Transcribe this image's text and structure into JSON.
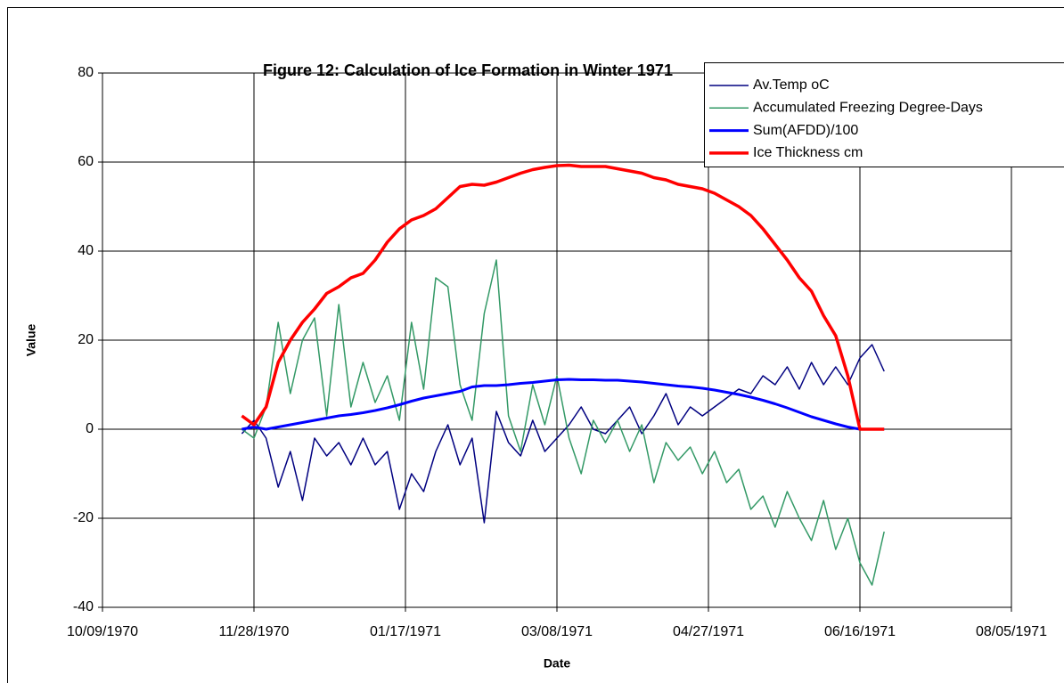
{
  "chart_data": {
    "type": "line",
    "title": "Figure  12: Calculation of Ice Formation in Winter  1971",
    "xlabel": "Date",
    "ylabel": "Value",
    "x": [
      "11/24/1970",
      "11/28/1970",
      "12/02/1970",
      "12/06/1970",
      "12/10/1970",
      "12/14/1970",
      "12/18/1970",
      "12/22/1970",
      "12/26/1970",
      "12/30/1970",
      "01/03/1971",
      "01/07/1971",
      "01/11/1971",
      "01/15/1971",
      "01/19/1971",
      "01/23/1971",
      "01/27/1971",
      "01/31/1971",
      "02/04/1971",
      "02/08/1971",
      "02/12/1971",
      "02/16/1971",
      "02/20/1971",
      "02/24/1971",
      "02/28/1971",
      "03/04/1971",
      "03/08/1971",
      "03/12/1971",
      "03/16/1971",
      "03/20/1971",
      "03/24/1971",
      "03/28/1971",
      "04/01/1971",
      "04/05/1971",
      "04/09/1971",
      "04/13/1971",
      "04/17/1971",
      "04/21/1971",
      "04/25/1971",
      "04/29/1971",
      "05/03/1971",
      "05/07/1971",
      "05/11/1971",
      "05/15/1971",
      "05/19/1971",
      "05/23/1971",
      "05/27/1971",
      "05/31/1971",
      "06/04/1971",
      "06/08/1971",
      "06/12/1971",
      "06/16/1971",
      "06/20/1971",
      "06/24/1971"
    ],
    "series": [
      {
        "name": "Av.Temp oC",
        "color": "#000080",
        "width": 1.5,
        "values": [
          -1,
          2,
          -2,
          -13,
          -5,
          -16,
          -2,
          -6,
          -3,
          -8,
          -2,
          -8,
          -5,
          -18,
          -10,
          -14,
          -5,
          1,
          -8,
          -2,
          -21,
          4,
          -3,
          -6,
          2,
          -5,
          -2,
          1,
          5,
          0,
          -1,
          2,
          5,
          -1,
          3,
          8,
          1,
          5,
          3,
          5,
          7,
          9,
          8,
          12,
          10,
          14,
          9,
          15,
          10,
          14,
          10,
          16,
          19,
          13
        ]
      },
      {
        "name": "Accumulated Freezing Degree-Days",
        "color": "#339966",
        "width": 1.5,
        "values": [
          0,
          -2,
          5,
          24,
          8,
          20,
          25,
          3,
          28,
          5,
          15,
          6,
          12,
          2,
          24,
          9,
          34,
          32,
          10,
          2,
          26,
          38,
          3,
          -5,
          10,
          1,
          12,
          -2,
          -10,
          2,
          -3,
          2,
          -5,
          1,
          -12,
          -3,
          -7,
          -4,
          -10,
          -5,
          -12,
          -9,
          -18,
          -15,
          -22,
          -14,
          -20,
          -25,
          -16,
          -27,
          -20,
          -30,
          -35,
          -23
        ]
      },
      {
        "name": "Sum(AFDD)/100",
        "color": "#0000ff",
        "width": 3,
        "values": [
          0,
          0.5,
          0,
          0.5,
          1,
          1.5,
          2,
          2.5,
          3,
          3.3,
          3.7,
          4.2,
          4.8,
          5.5,
          6.3,
          7,
          7.5,
          8,
          8.5,
          9.5,
          9.8,
          9.8,
          10,
          10.3,
          10.5,
          10.8,
          11.1,
          11.2,
          11.1,
          11.1,
          11,
          11,
          10.8,
          10.6,
          10.3,
          10,
          9.7,
          9.5,
          9.2,
          8.8,
          8.3,
          7.8,
          7.2,
          6.5,
          5.7,
          4.8,
          3.8,
          2.8,
          2,
          1.2,
          0.5,
          0,
          0,
          0
        ]
      },
      {
        "name": "Ice Thickness cm",
        "color": "#ff0000",
        "width": 3.5,
        "values": [
          3,
          1,
          5,
          15,
          20,
          24,
          27,
          30.5,
          32,
          34,
          35,
          38,
          42,
          45,
          47,
          48,
          49.5,
          52,
          54.5,
          55,
          54.8,
          55.5,
          56.5,
          57.5,
          58.3,
          58.8,
          59.2,
          59.3,
          59,
          59,
          59,
          58.5,
          58,
          57.5,
          56.5,
          56,
          55,
          54.5,
          54,
          53,
          51.5,
          50,
          48,
          45,
          41.5,
          38,
          34,
          31,
          25.5,
          21,
          12,
          0,
          0,
          0
        ]
      }
    ],
    "xlim": [
      "10/09/1970",
      "08/05/1971"
    ],
    "xticks": [
      "10/09/1970",
      "11/28/1970",
      "01/17/1971",
      "03/08/1971",
      "04/27/1971",
      "06/16/1971",
      "08/05/1971"
    ],
    "ylim": [
      -40,
      80
    ],
    "yticks": [
      -40,
      -20,
      0,
      20,
      40,
      60,
      80
    ],
    "grid": true
  }
}
